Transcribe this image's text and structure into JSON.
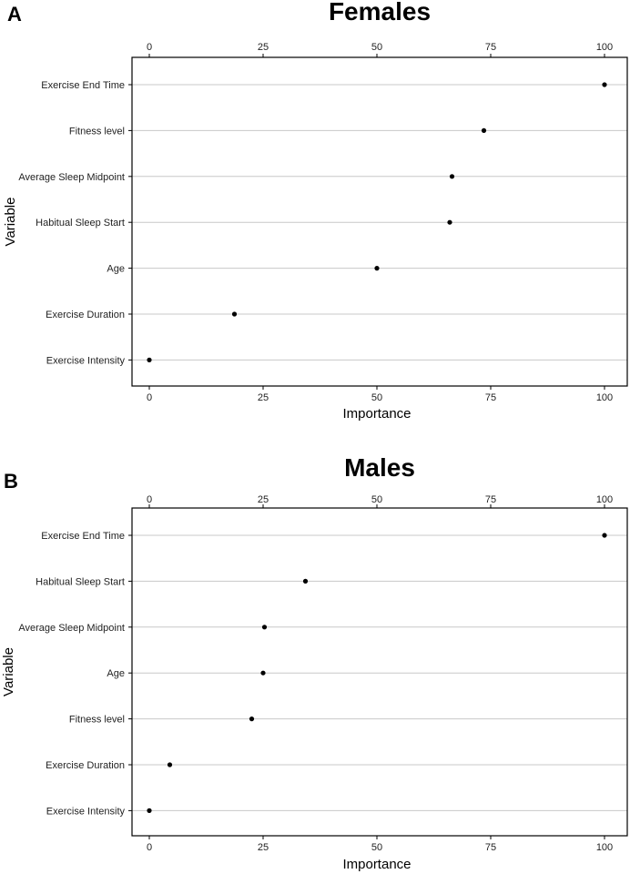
{
  "chart_data": [
    {
      "type": "scatter",
      "panel": "A",
      "title": "Females",
      "xlabel": "Importance",
      "ylabel": "Variable",
      "xlim": [
        0,
        100
      ],
      "xticks": [
        "0",
        "25",
        "50",
        "75",
        "100"
      ],
      "categories": [
        "Exercise End Time",
        "Fitness level",
        "Average Sleep Midpoint",
        "Habitual Sleep Start",
        "Age",
        "Exercise Duration",
        "Exercise Intensity"
      ],
      "values": [
        100,
        73.5,
        66.5,
        66,
        50,
        18.7,
        0
      ],
      "grid": true
    },
    {
      "type": "scatter",
      "panel": "B",
      "title": "Males",
      "xlabel": "Importance",
      "ylabel": "Variable",
      "xlim": [
        0,
        100
      ],
      "xticks": [
        "0",
        "25",
        "50",
        "75",
        "100"
      ],
      "categories": [
        "Exercise End Time",
        "Habitual Sleep Start",
        "Average Sleep Midpoint",
        "Age",
        "Fitness level",
        "Exercise Duration",
        "Exercise Intensity"
      ],
      "values": [
        100,
        34.3,
        25.3,
        25,
        22.5,
        4.5,
        0
      ],
      "grid": true
    }
  ]
}
